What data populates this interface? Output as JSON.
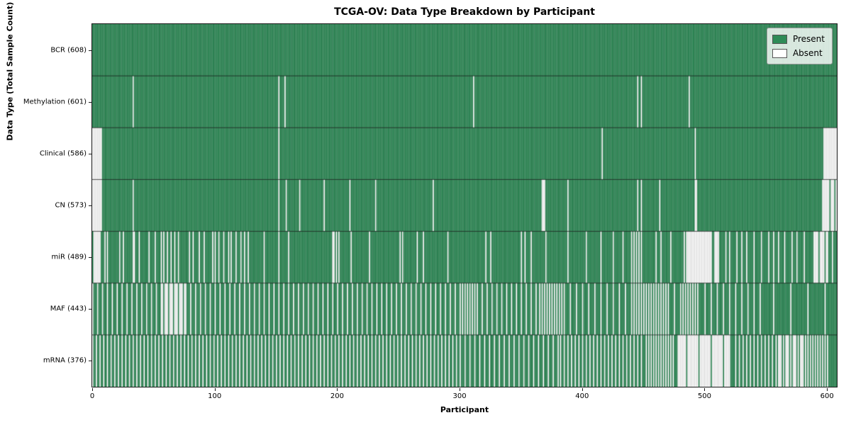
{
  "chart_data": {
    "type": "heatmap",
    "title": "TCGA-OV: Data Type Breakdown by Participant",
    "xlabel": "Participant",
    "ylabel": "Data Type (Total Sample Count)",
    "x_ticks": [
      0,
      100,
      200,
      300,
      400,
      500,
      600
    ],
    "xlim": [
      0,
      608
    ],
    "n_participants": 608,
    "grid": false,
    "legend": {
      "position": "upper right",
      "entries": [
        {
          "label": "Present",
          "color": "#2e8b57"
        },
        {
          "label": "Absent",
          "color": "#ffffff"
        }
      ]
    },
    "colors": {
      "present": "#2e8b57",
      "absent": "#ffffff",
      "cell_edge": "rgba(0,0,0,0.30)",
      "row_separator": "rgba(0,0,0,0.85)",
      "spine": "#1a1a1a"
    },
    "rows": [
      {
        "name": "BCR",
        "count": 608,
        "label": "BCR (608)",
        "absent": []
      },
      {
        "name": "Methylation",
        "count": 601,
        "label": "Methylation (601)",
        "absent": [
          33,
          152,
          157,
          311,
          445,
          448,
          487
        ]
      },
      {
        "name": "Clinical",
        "count": 586,
        "label": "Clinical (586)",
        "absent": [
          0,
          1,
          2,
          3,
          4,
          5,
          6,
          7,
          152,
          416,
          492,
          597,
          598,
          599,
          600,
          601,
          602,
          603,
          604,
          605,
          606,
          607
        ]
      },
      {
        "name": "CN",
        "count": 573,
        "label": "CN (573)",
        "absent": [
          0,
          1,
          2,
          3,
          4,
          5,
          6,
          7,
          33,
          152,
          158,
          169,
          189,
          210,
          231,
          278,
          367,
          368,
          369,
          388,
          445,
          448,
          463,
          492,
          493,
          596,
          597,
          598,
          599,
          600,
          601,
          603,
          604,
          605,
          607
        ]
      },
      {
        "name": "miR",
        "count": 489,
        "label": "miR (489)",
        "absent": [
          1,
          2,
          3,
          4,
          5,
          6,
          10,
          12,
          22,
          25,
          33,
          34,
          38,
          46,
          51,
          56,
          58,
          61,
          64,
          67,
          70,
          79,
          82,
          87,
          91,
          98,
          100,
          103,
          107,
          111,
          113,
          117,
          121,
          124,
          127,
          140,
          152,
          160,
          196,
          197,
          199,
          201,
          211,
          226,
          251,
          253,
          265,
          270,
          290,
          321,
          325,
          350,
          353,
          358,
          370,
          388,
          403,
          415,
          425,
          433,
          440,
          442,
          444,
          446,
          448,
          460,
          464,
          472,
          483,
          485,
          486,
          487,
          488,
          489,
          490,
          491,
          492,
          493,
          494,
          495,
          496,
          497,
          498,
          499,
          500,
          501,
          502,
          503,
          504,
          505,
          508,
          509,
          510,
          511,
          517,
          520,
          526,
          530,
          534,
          540,
          546,
          552,
          556,
          560,
          565,
          571,
          575,
          581,
          589,
          590,
          591,
          592,
          594,
          595,
          596,
          597,
          599,
          600,
          604
        ]
      },
      {
        "name": "MAF",
        "count": 443,
        "label": "MAF (443)",
        "absent": [
          0,
          4,
          8,
          12,
          16,
          20,
          24,
          28,
          32,
          36,
          40,
          44,
          48,
          52,
          56,
          57,
          59,
          60,
          61,
          63,
          64,
          65,
          67,
          68,
          69,
          71,
          72,
          73,
          75,
          76,
          80,
          84,
          88,
          92,
          96,
          100,
          104,
          108,
          112,
          116,
          120,
          124,
          128,
          132,
          136,
          140,
          144,
          148,
          152,
          156,
          160,
          164,
          168,
          172,
          176,
          180,
          184,
          188,
          192,
          196,
          200,
          204,
          208,
          212,
          216,
          220,
          224,
          228,
          232,
          236,
          240,
          244,
          248,
          252,
          256,
          260,
          264,
          268,
          272,
          276,
          280,
          284,
          288,
          292,
          296,
          300,
          302,
          304,
          306,
          308,
          310,
          312,
          314,
          318,
          322,
          326,
          330,
          334,
          338,
          342,
          346,
          350,
          354,
          358,
          362,
          365,
          367,
          369,
          371,
          373,
          375,
          377,
          379,
          381,
          383,
          385,
          390,
          395,
          400,
          405,
          410,
          415,
          420,
          425,
          430,
          435,
          440,
          442,
          444,
          446,
          448,
          450,
          452,
          454,
          456,
          458,
          460,
          462,
          464,
          466,
          468,
          470,
          475,
          480,
          482,
          484,
          486,
          488,
          490,
          492,
          494,
          500,
          505,
          510,
          515,
          520,
          525,
          530,
          535,
          540,
          545,
          556,
          570,
          584,
          598
        ]
      },
      {
        "name": "mRNA",
        "count": 376,
        "label": "mRNA (376)",
        "absent": [
          0,
          3,
          6,
          9,
          12,
          15,
          18,
          21,
          24,
          27,
          30,
          33,
          36,
          39,
          42,
          45,
          48,
          51,
          54,
          57,
          60,
          63,
          66,
          69,
          72,
          75,
          78,
          81,
          84,
          87,
          90,
          93,
          96,
          99,
          102,
          105,
          108,
          111,
          114,
          117,
          120,
          123,
          126,
          129,
          132,
          135,
          138,
          141,
          144,
          147,
          150,
          153,
          156,
          159,
          162,
          165,
          168,
          171,
          174,
          177,
          180,
          183,
          186,
          189,
          192,
          195,
          198,
          201,
          204,
          207,
          210,
          213,
          216,
          219,
          222,
          225,
          228,
          231,
          234,
          237,
          240,
          243,
          246,
          249,
          252,
          255,
          258,
          261,
          264,
          267,
          270,
          273,
          276,
          279,
          282,
          285,
          288,
          291,
          294,
          297,
          300,
          304,
          308,
          312,
          316,
          320,
          324,
          328,
          332,
          336,
          340,
          344,
          348,
          352,
          356,
          360,
          364,
          368,
          372,
          376,
          380,
          382,
          385,
          388,
          391,
          394,
          397,
          400,
          403,
          406,
          409,
          412,
          415,
          418,
          421,
          424,
          427,
          430,
          433,
          436,
          439,
          442,
          445,
          448,
          452,
          454,
          456,
          458,
          460,
          462,
          464,
          466,
          468,
          470,
          472,
          474,
          478,
          479,
          480,
          481,
          482,
          483,
          484,
          486,
          487,
          488,
          489,
          490,
          491,
          492,
          493,
          494,
          496,
          497,
          498,
          499,
          500,
          501,
          502,
          503,
          504,
          506,
          507,
          508,
          509,
          510,
          511,
          512,
          513,
          514,
          516,
          517,
          518,
          519,
          520,
          525,
          528,
          531,
          534,
          537,
          540,
          543,
          546,
          549,
          552,
          555,
          558,
          560,
          561,
          562,
          564,
          566,
          567,
          568,
          570,
          572,
          573,
          574,
          576,
          578,
          579,
          580,
          582,
          584,
          586,
          588,
          590,
          592,
          594,
          596,
          598,
          600
        ]
      }
    ]
  }
}
